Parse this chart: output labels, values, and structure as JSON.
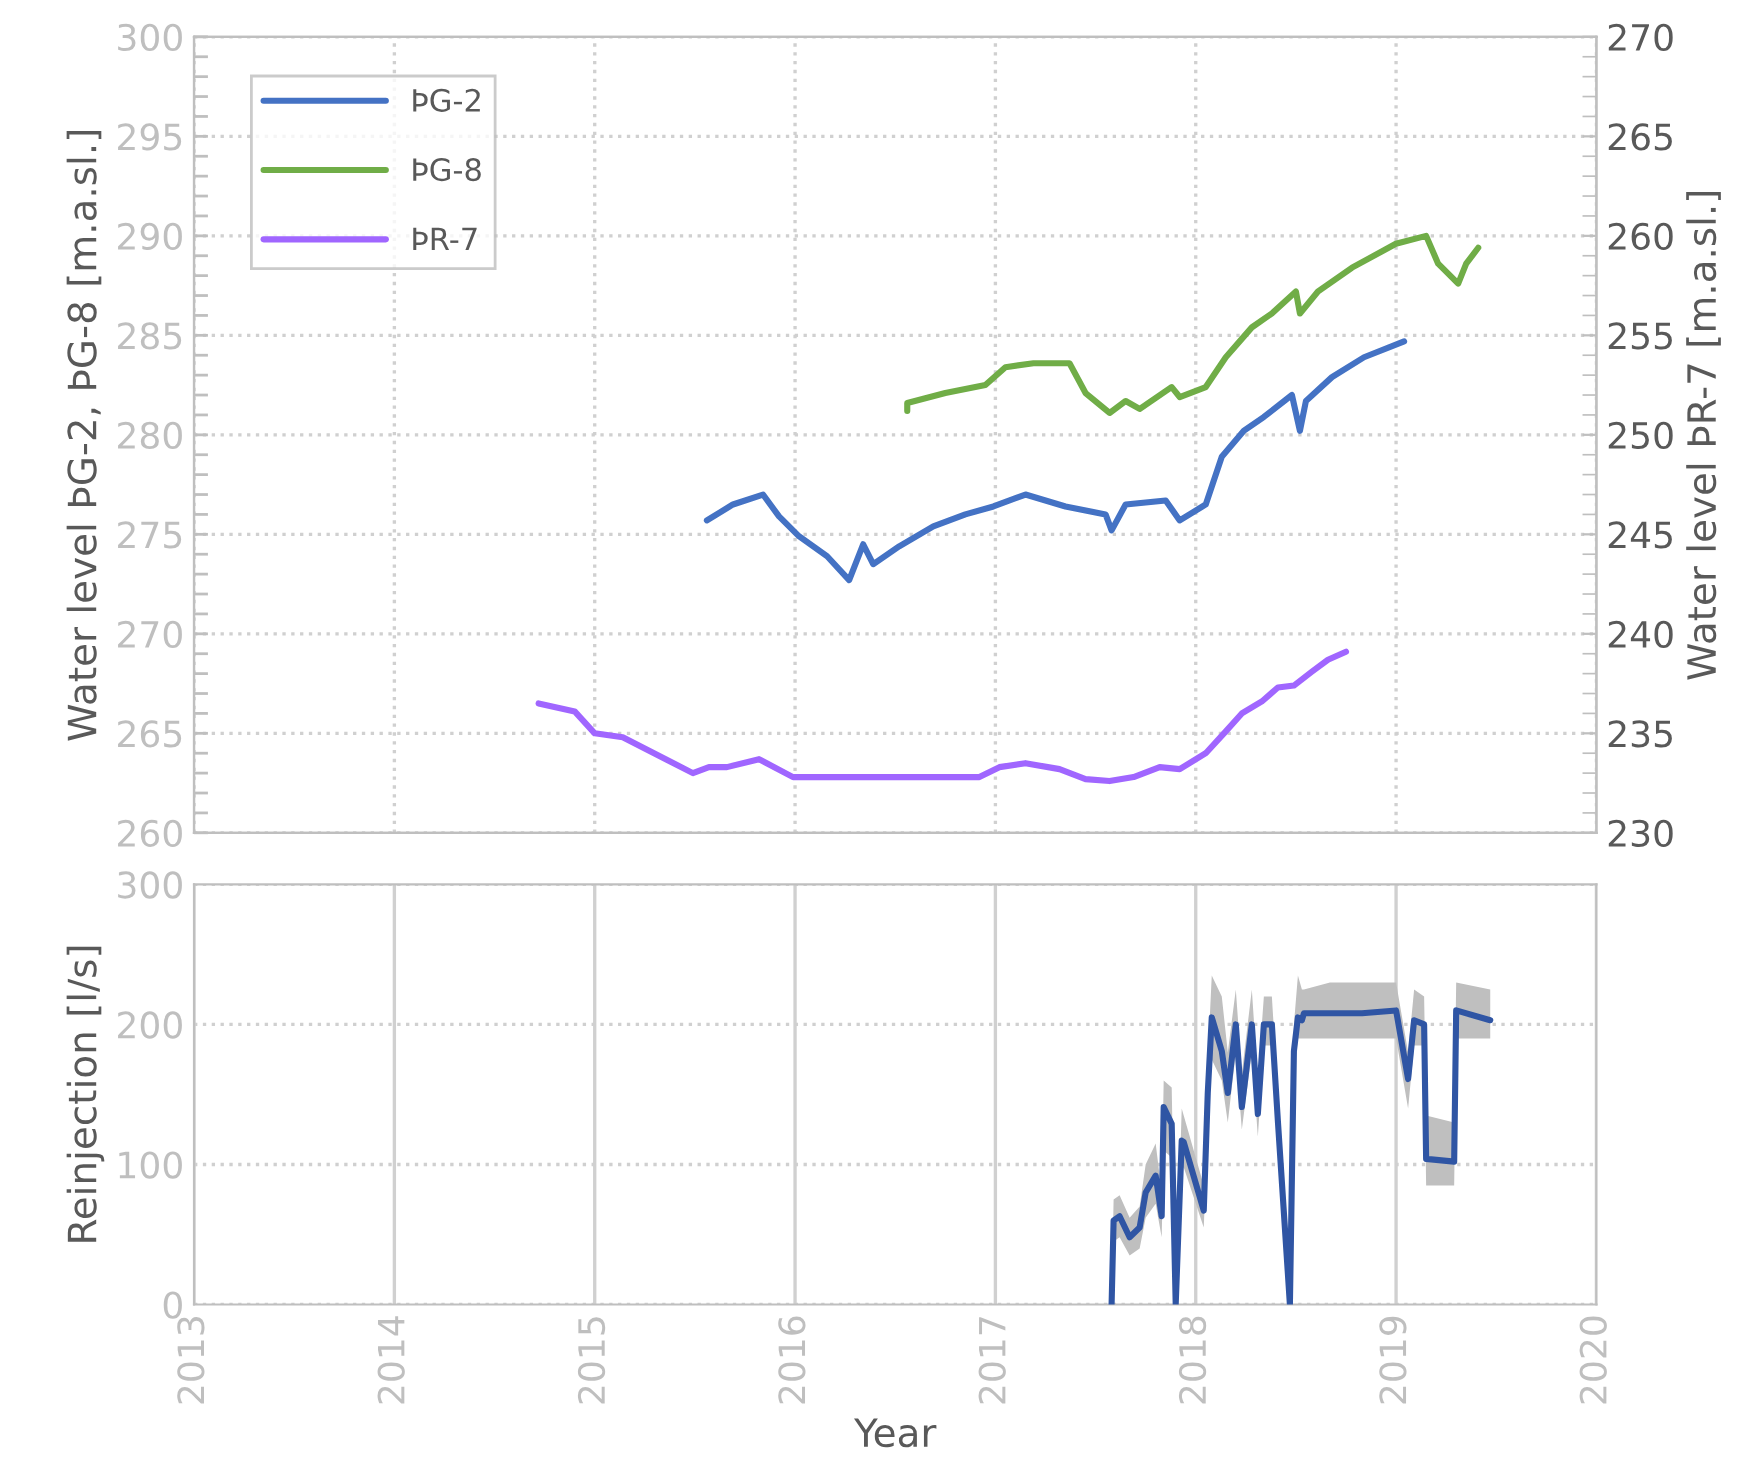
{
  "chart_data": [
    {
      "type": "line",
      "ylabel": "Water level ÞG-2, ÞG-8 [m.a.sl.]",
      "y2label": "Water level ÞR-7 [m.a.sl.]",
      "xlim": [
        2013,
        2020
      ],
      "xticks": [
        {
          "value": 2013,
          "label": null
        },
        {
          "value": 2014,
          "label": null
        },
        {
          "value": 2015,
          "label": null
        },
        {
          "value": 2016,
          "label": null
        },
        {
          "value": 2017,
          "label": null
        },
        {
          "value": 2018,
          "label": null
        },
        {
          "value": 2019,
          "label": null
        },
        {
          "value": 2020,
          "label": null
        }
      ],
      "ylim": [
        260,
        300
      ],
      "yticks": [
        260,
        265,
        270,
        275,
        280,
        285,
        290,
        295,
        300
      ],
      "y2lim": [
        230,
        270
      ],
      "y2ticks": [
        230,
        235,
        240,
        245,
        250,
        255,
        260,
        265,
        270
      ],
      "tick_labels": "y",
      "grid": true,
      "legend": "top left",
      "series": [
        {
          "name": "ÞG-2",
          "color": "#4472c4",
          "x": [
            2015.56,
            2015.69,
            2015.84,
            2015.92,
            2016.02,
            2016.16,
            2016.27,
            2016.34,
            2016.39,
            2016.52,
            2016.69,
            2016.85,
            2016.99,
            2017.15,
            2017.35,
            2017.55,
            2017.58,
            2017.65,
            2017.85,
            2017.92,
            2018.05,
            2018.13,
            2018.24,
            2018.34,
            2018.48,
            2018.52,
            2018.55,
            2018.68,
            2018.84,
            2019.04
          ],
          "values": [
            275.7,
            276.5,
            277.0,
            275.9,
            274.9,
            273.9,
            272.7,
            274.5,
            273.5,
            274.4,
            275.4,
            276.0,
            276.4,
            277.0,
            276.4,
            276.0,
            275.2,
            276.5,
            276.7,
            275.7,
            276.5,
            278.9,
            280.2,
            280.9,
            282.0,
            280.2,
            281.7,
            282.9,
            283.9,
            284.7
          ]
        },
        {
          "name": "ÞG-8",
          "color": "#70ad47",
          "x": [
            2016.56,
            2016.56,
            2016.75,
            2016.95,
            2017.05,
            2017.19,
            2017.37,
            2017.45,
            2017.57,
            2017.65,
            2017.72,
            2017.88,
            2017.92,
            2018.05,
            2018.15,
            2018.28,
            2018.38,
            2018.5,
            2018.52,
            2018.61,
            2018.78,
            2018.999,
            2019.15,
            2019.21,
            2019.31,
            2019.35,
            2019.41
          ],
          "values": [
            281.2,
            281.6,
            282.1,
            282.5,
            283.4,
            283.6,
            283.6,
            282.1,
            281.1,
            281.7,
            281.3,
            282.4,
            281.9,
            282.4,
            283.9,
            285.4,
            286.1,
            287.2,
            286.1,
            287.2,
            288.4,
            289.6,
            290.0,
            288.6,
            287.6,
            288.6,
            289.4
          ]
        },
        {
          "name": "ÞR-7",
          "color": "#a066ff",
          "axis": "y2",
          "x": [
            2014.72,
            2014.9,
            2015.0,
            2015.14,
            2015.49,
            2015.57,
            2015.66,
            2015.82,
            2015.99,
            2016.42,
            2016.92,
            2017.02,
            2017.15,
            2017.32,
            2017.45,
            2017.57,
            2017.69,
            2017.82,
            2017.92,
            2018.05,
            2018.15,
            2018.23,
            2018.33,
            2018.41,
            2018.49,
            2018.58,
            2018.66,
            2018.75
          ],
          "values": [
            236.5,
            236.1,
            235.0,
            234.8,
            233.0,
            233.3,
            233.3,
            233.7,
            232.8,
            232.8,
            232.8,
            233.3,
            233.5,
            233.2,
            232.7,
            232.6,
            232.8,
            233.3,
            233.2,
            234.0,
            235.1,
            236.0,
            236.6,
            237.3,
            237.4,
            238.1,
            238.7,
            239.1
          ]
        }
      ]
    },
    {
      "type": "line",
      "xlabel": "Year",
      "ylabel": "Reinjection [l/s]",
      "xlim": [
        2013,
        2020
      ],
      "xticks": [
        2013,
        2014,
        2015,
        2016,
        2017,
        2018,
        2019,
        2020
      ],
      "ylim": [
        0,
        300
      ],
      "yticks": [
        0,
        100,
        200,
        300
      ],
      "grid": true,
      "series": [
        {
          "color": "#2f55a4",
          "x": [
            2017.58,
            2017.59,
            2017.62,
            2017.67,
            2017.72,
            2017.75,
            2017.8,
            2017.83,
            2017.84,
            2017.88,
            2017.9,
            2017.93,
            2017.94,
            2018.04,
            2018.06,
            2018.08,
            2018.13,
            2018.16,
            2018.2,
            2018.23,
            2018.28,
            2018.31,
            2018.34,
            2018.38,
            2018.41,
            2018.47,
            2018.49,
            2018.51,
            2018.53,
            2018.54,
            2018.67,
            2018.83,
            2019.0,
            2019.06,
            2019.09,
            2019.14,
            2019.15,
            2019.29,
            2019.3,
            2019.47
          ],
          "values": [
            0,
            60,
            63,
            48,
            55,
            80,
            92,
            63,
            141,
            129,
            0,
            117,
            116,
            67,
            151,
            205,
            181,
            151,
            200,
            141,
            200,
            136,
            200,
            200,
            131,
            0,
            181,
            205,
            203,
            208,
            208,
            208,
            210,
            161,
            203,
            200,
            104,
            102,
            210,
            203
          ],
          "lower": [
            0,
            45,
            48,
            35,
            40,
            62,
            72,
            48,
            110,
            105,
            0,
            95,
            98,
            55,
            125,
            175,
            160,
            130,
            180,
            125,
            180,
            120,
            185,
            185,
            115,
            0,
            165,
            190,
            190,
            190,
            190,
            190,
            190,
            140,
            185,
            185,
            85,
            85,
            190,
            190
          ],
          "upper": [
            0,
            75,
            78,
            62,
            70,
            100,
            115,
            80,
            160,
            155,
            0,
            140,
            135,
            85,
            175,
            235,
            220,
            180,
            225,
            165,
            225,
            160,
            220,
            220,
            150,
            0,
            200,
            235,
            225,
            225,
            230,
            230,
            230,
            180,
            225,
            220,
            135,
            130,
            230,
            225
          ]
        }
      ]
    }
  ]
}
